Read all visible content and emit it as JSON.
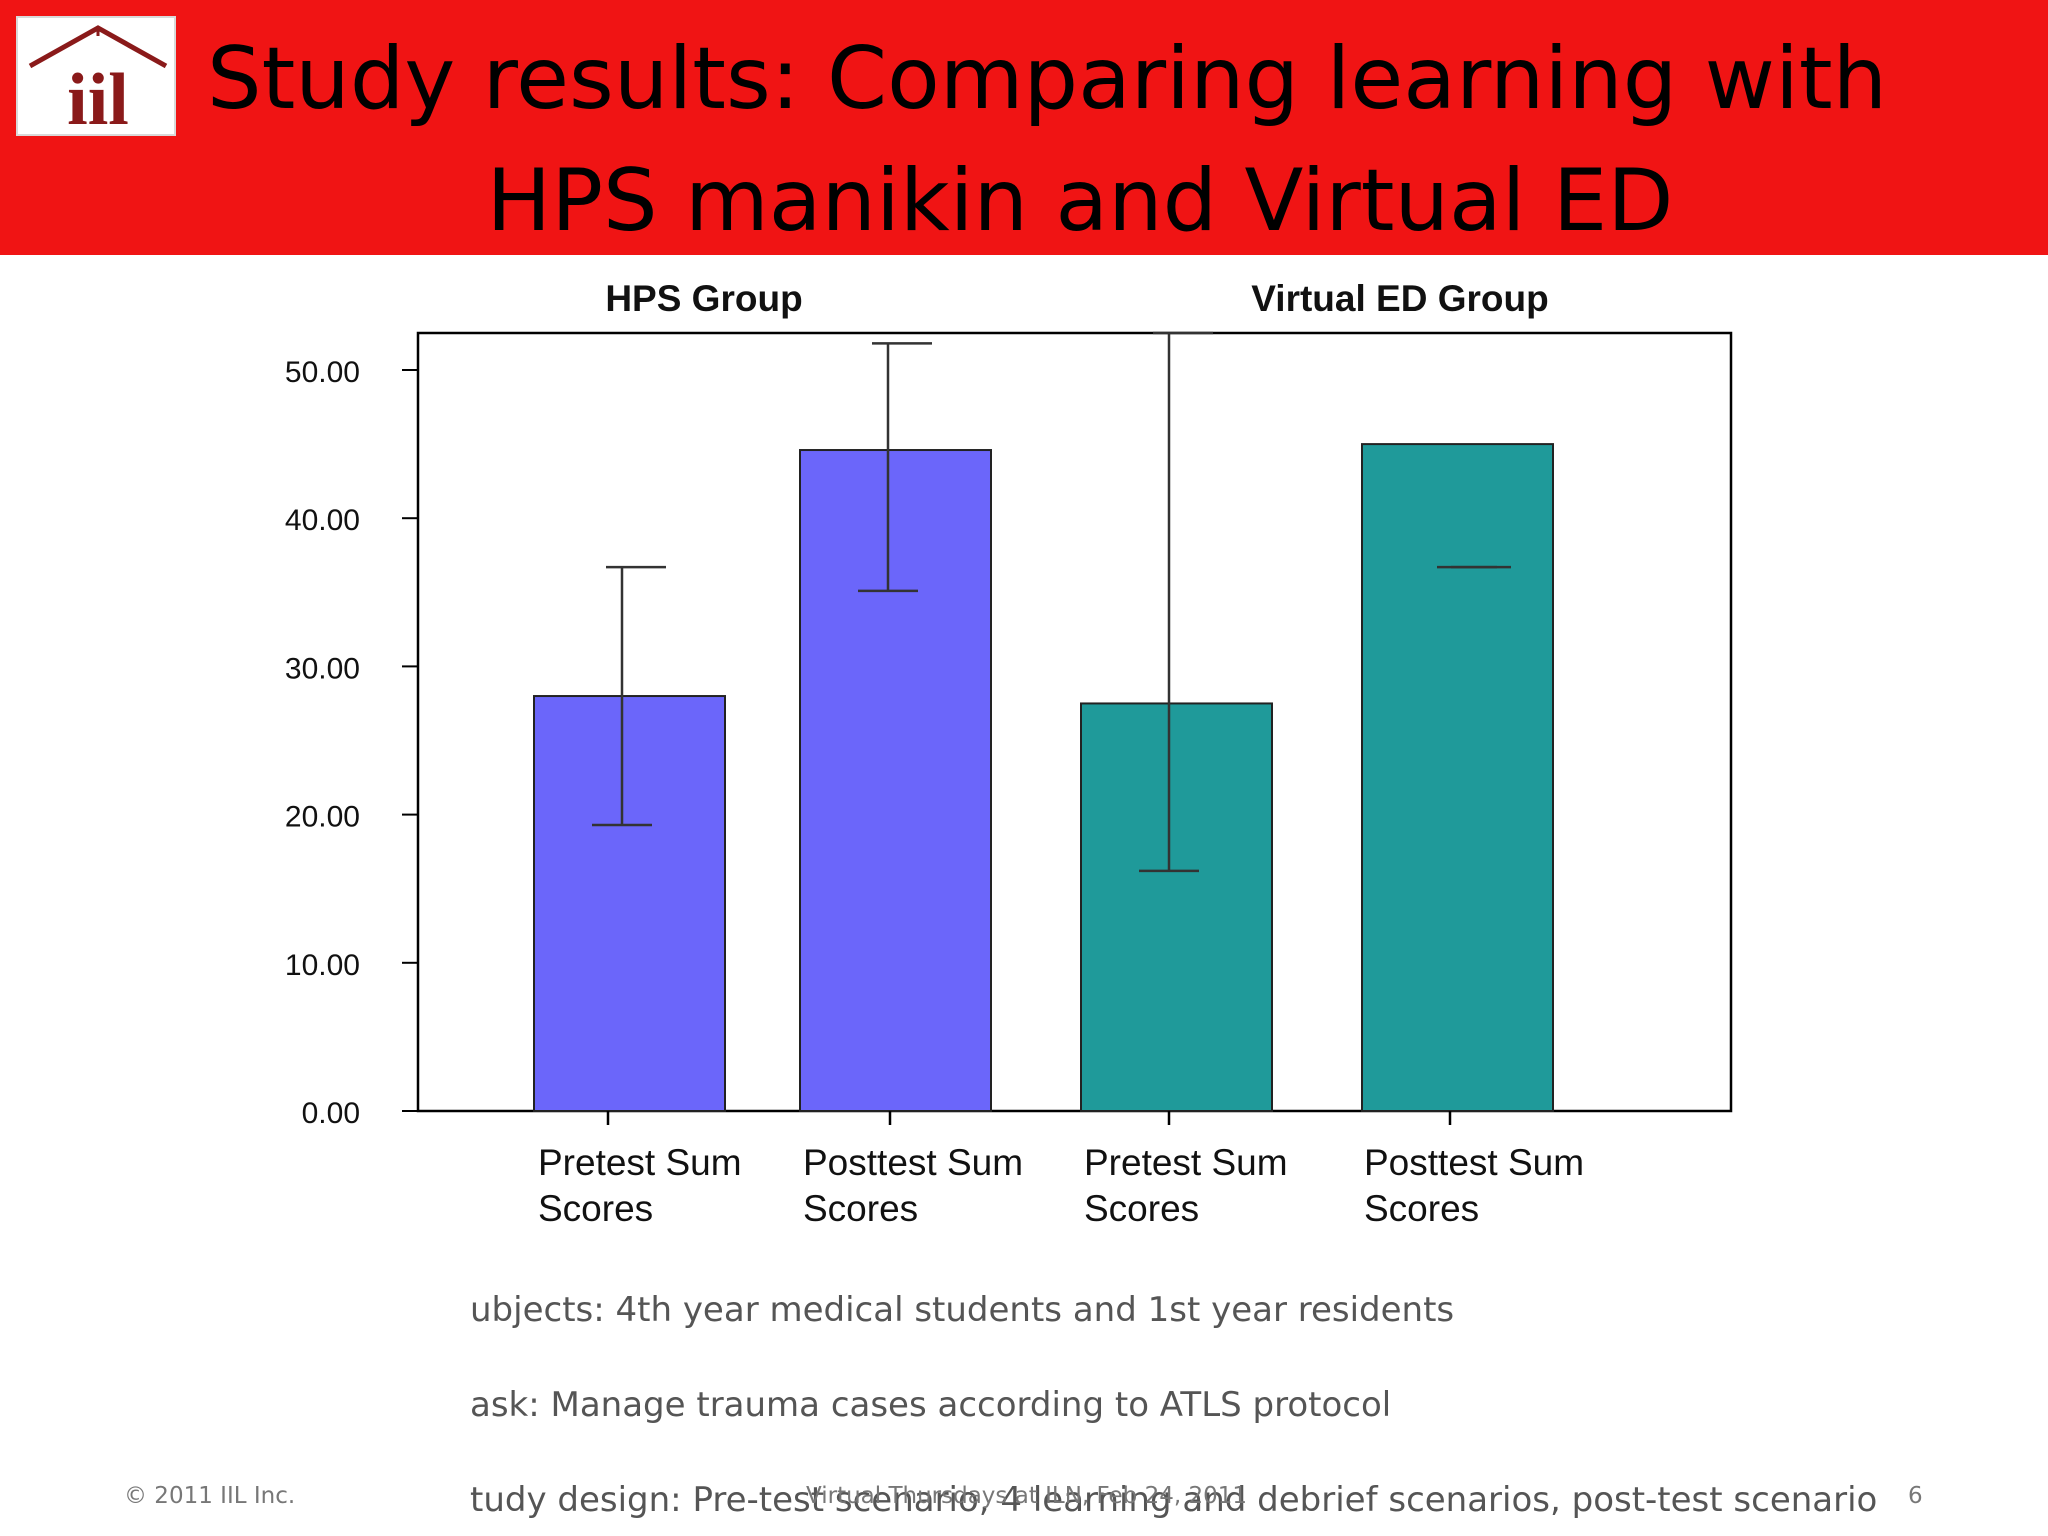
{
  "slide": {
    "title_line1": "Study results:  Comparing learning with",
    "title_line2": "HPS manikin and Virtual ED",
    "logo_text": "iil",
    "banner_color": "#f01414"
  },
  "chart_data": {
    "type": "bar",
    "group_labels": [
      "HPS Group",
      "Virtual ED Group"
    ],
    "categories": [
      [
        "Pretest Sum",
        "Scores"
      ],
      [
        "Posttest Sum",
        "Scores"
      ],
      [
        "Pretest Sum",
        "Scores"
      ],
      [
        "Posttest Sum",
        "Scores"
      ]
    ],
    "groups": [
      "HPS Group",
      "HPS Group",
      "Virtual ED Group",
      "Virtual ED Group"
    ],
    "values": [
      28.0,
      44.6,
      27.5,
      45.0
    ],
    "error_low": [
      19.3,
      35.1,
      16.2,
      36.7
    ],
    "error_high": [
      36.7,
      51.8,
      52.5,
      36.7
    ],
    "colors": [
      "#6b66fa",
      "#6b66fa",
      "#1f9a9a",
      "#1f9a9a"
    ],
    "ylim": [
      0,
      50
    ],
    "yticks": [
      "0.00",
      "10.00",
      "20.00",
      "30.00",
      "40.00",
      "50.00"
    ],
    "xlabel": "",
    "ylabel": "",
    "grid": false
  },
  "notes": [
    "ubjects:  4th year medical students and 1st year residents",
    "ask:  Manage trauma cases according to ATLS protocol",
    "tudy design:  Pre-test scenario, 4 learning and debrief scenarios, post-test scenario"
  ],
  "footer": {
    "copyright": "© 2011 IIL Inc.",
    "center": "Virtual Thursdays at ILN, Feb 24, 2011",
    "page": "6"
  }
}
